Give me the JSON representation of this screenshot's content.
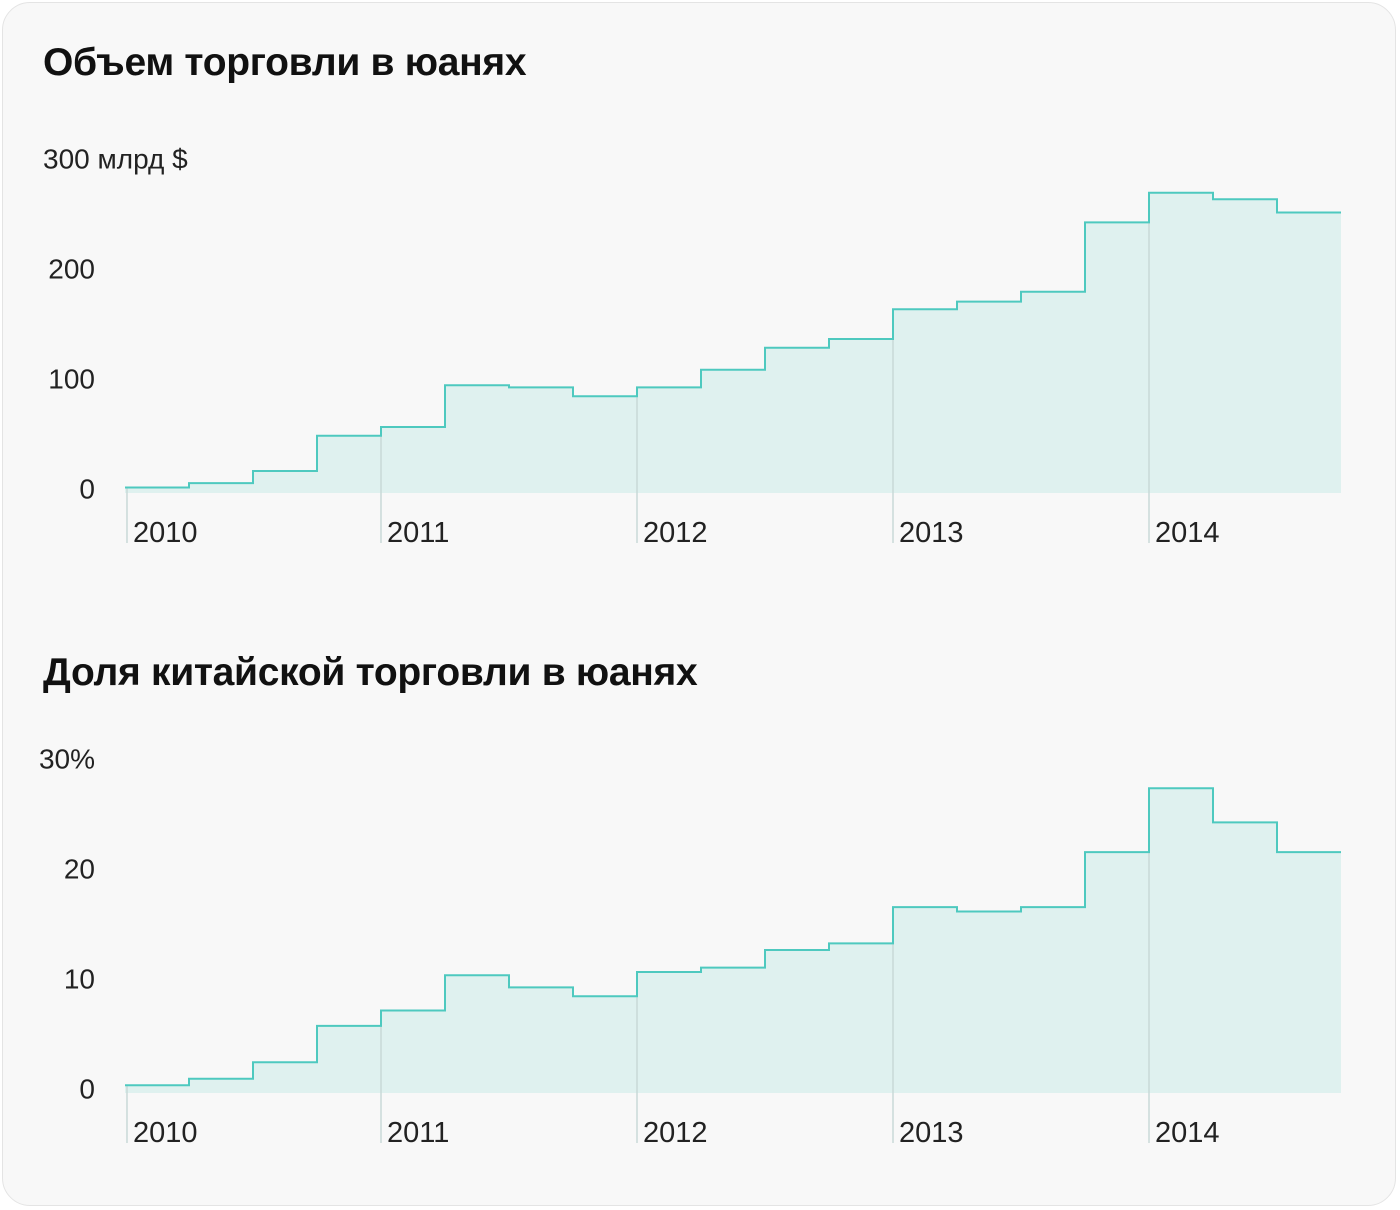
{
  "colors": {
    "line": "#4ec9bf",
    "fill": "#dff1ef",
    "grid": "#c9d9d7",
    "background": "#f8f8f8"
  },
  "chart_data": [
    {
      "type": "area",
      "step": true,
      "title": "Объем торговли в юанях",
      "unit_label": "300 млрд $",
      "ylim": [
        0,
        300
      ],
      "yticks": [
        {
          "value": 0,
          "label": "0"
        },
        {
          "value": 100,
          "label": "100"
        },
        {
          "value": 200,
          "label": "200"
        },
        {
          "value": 300,
          "label": "300 млрд $"
        }
      ],
      "xlim": [
        2010,
        2014.75
      ],
      "xticks": [
        "2010",
        "2011",
        "2012",
        "2013",
        "2014"
      ],
      "x": [
        2010,
        2010.25,
        2010.5,
        2010.75,
        2011,
        2011.25,
        2011.5,
        2011.75,
        2012,
        2012.25,
        2012.5,
        2012.75,
        2013,
        2013.25,
        2013.5,
        2013.75,
        2014,
        2014.25,
        2014.5
      ],
      "values": [
        5,
        9,
        20,
        52,
        60,
        98,
        96,
        88,
        96,
        112,
        132,
        140,
        167,
        174,
        183,
        246,
        273,
        267,
        255
      ]
    },
    {
      "type": "area",
      "step": true,
      "title": "Доля китайской торговли в юанях",
      "unit_label": "30%",
      "ylim": [
        0,
        30
      ],
      "yticks": [
        {
          "value": 0,
          "label": "0"
        },
        {
          "value": 10,
          "label": "10"
        },
        {
          "value": 20,
          "label": "20"
        },
        {
          "value": 30,
          "label": "30%"
        }
      ],
      "xlim": [
        2010,
        2014.75
      ],
      "xticks": [
        "2010",
        "2011",
        "2012",
        "2013",
        "2014"
      ],
      "x": [
        2010,
        2010.25,
        2010.5,
        2010.75,
        2011,
        2011.25,
        2011.5,
        2011.75,
        2012,
        2012.25,
        2012.5,
        2012.75,
        2013,
        2013.25,
        2013.5,
        2013.75,
        2014,
        2014.25,
        2014.5
      ],
      "values": [
        0.7,
        1.3,
        2.8,
        6.1,
        7.5,
        10.7,
        9.6,
        8.8,
        11.0,
        11.4,
        13.0,
        13.6,
        16.9,
        16.5,
        16.9,
        21.9,
        27.7,
        24.6,
        21.9
      ]
    }
  ]
}
